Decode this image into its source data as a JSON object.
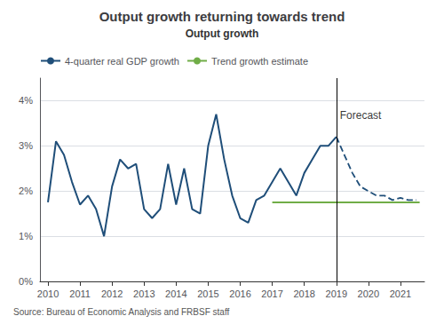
{
  "chart_data": {
    "type": "line",
    "title": "Output growth returning towards trend",
    "subtitle": "Output growth",
    "source": "Source: Bureau of Economic Analysis and FRBSF staff",
    "legend": "upper left",
    "grid": true,
    "xlim": [
      2009.75,
      2021.75
    ],
    "xticks": [
      2010,
      2011,
      2012,
      2013,
      2014,
      2015,
      2016,
      2017,
      2018,
      2019,
      2020,
      2021
    ],
    "ylim": [
      0,
      0.045
    ],
    "yticks": [
      {
        "value": 0,
        "label": "0%"
      },
      {
        "value": 0.01,
        "label": "1%"
      },
      {
        "value": 0.02,
        "label": "2%"
      },
      {
        "value": 0.03,
        "label": "3%"
      },
      {
        "value": 0.04,
        "label": "4%"
      }
    ],
    "annotations": [
      {
        "text": "Forecast",
        "x": 2019.0,
        "y": 0.038
      }
    ],
    "series": [
      {
        "name": "4-quarter real GDP growth",
        "color": "#1f4e79",
        "line_style": "solid",
        "x": [
          2010.0,
          2010.25,
          2010.5,
          2010.75,
          2011.0,
          2011.25,
          2011.5,
          2011.75,
          2012.0,
          2012.25,
          2012.5,
          2012.75,
          2013.0,
          2013.25,
          2013.5,
          2013.75,
          2014.0,
          2014.25,
          2014.5,
          2014.75,
          2015.0,
          2015.25,
          2015.5,
          2015.75,
          2016.0,
          2016.25,
          2016.5,
          2016.75,
          2017.0,
          2017.25,
          2017.5,
          2017.75,
          2018.0,
          2018.25,
          2018.5,
          2018.75,
          2019.0
        ],
        "values": [
          0.0175,
          0.031,
          0.028,
          0.022,
          0.017,
          0.019,
          0.016,
          0.01,
          0.021,
          0.027,
          0.025,
          0.026,
          0.016,
          0.014,
          0.016,
          0.026,
          0.017,
          0.025,
          0.016,
          0.015,
          0.03,
          0.037,
          0.027,
          0.019,
          0.014,
          0.013,
          0.018,
          0.019,
          0.022,
          0.025,
          0.022,
          0.019,
          0.024,
          0.027,
          0.03,
          0.03,
          0.032
        ]
      },
      {
        "name": "4-quarter real GDP growth",
        "color": "#1f4e79",
        "line_style": "dashed",
        "x": [
          2019.0,
          2019.25,
          2019.5,
          2019.75,
          2020.0,
          2020.25,
          2020.5,
          2020.75,
          2021.0,
          2021.25,
          2021.5
        ],
        "values": [
          0.032,
          0.028,
          0.024,
          0.021,
          0.02,
          0.019,
          0.019,
          0.018,
          0.0185,
          0.018,
          0.018
        ]
      },
      {
        "name": "Trend growth estimate",
        "color": "#70ad47",
        "line_style": "solid",
        "x": [
          2017.0,
          2021.6
        ],
        "values": [
          0.0175,
          0.0175
        ]
      }
    ]
  }
}
